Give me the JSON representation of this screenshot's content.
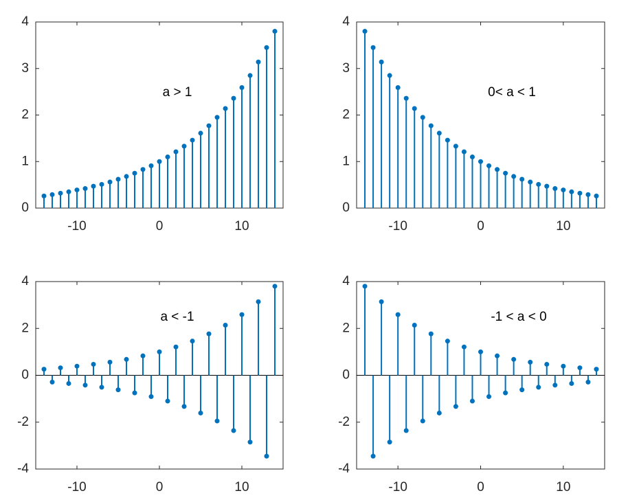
{
  "chart_data": [
    {
      "type": "stem",
      "annotation": "a > 1",
      "color": "#0072bd",
      "x": [
        -14,
        -13,
        -12,
        -11,
        -10,
        -9,
        -8,
        -7,
        -6,
        -5,
        -4,
        -3,
        -2,
        -1,
        0,
        1,
        2,
        3,
        4,
        5,
        6,
        7,
        8,
        9,
        10,
        11,
        12,
        13,
        14
      ],
      "values": [
        0.26,
        0.29,
        0.32,
        0.35,
        0.39,
        0.42,
        0.47,
        0.51,
        0.56,
        0.62,
        0.68,
        0.75,
        0.83,
        0.91,
        1,
        1.1,
        1.21,
        1.33,
        1.46,
        1.61,
        1.77,
        1.95,
        2.14,
        2.36,
        2.59,
        2.85,
        3.14,
        3.45,
        3.8
      ],
      "xlim": [
        -15,
        15
      ],
      "xticks": [
        -10,
        0,
        10
      ],
      "ylim": [
        0,
        4
      ],
      "yticks": [
        0,
        1,
        2,
        3,
        4
      ]
    },
    {
      "type": "stem",
      "annotation": "0< a < 1",
      "color": "#0072bd",
      "x": [
        -14,
        -13,
        -12,
        -11,
        -10,
        -9,
        -8,
        -7,
        -6,
        -5,
        -4,
        -3,
        -2,
        -1,
        0,
        1,
        2,
        3,
        4,
        5,
        6,
        7,
        8,
        9,
        10,
        11,
        12,
        13,
        14
      ],
      "values": [
        3.8,
        3.45,
        3.14,
        2.85,
        2.59,
        2.36,
        2.14,
        1.95,
        1.77,
        1.61,
        1.46,
        1.33,
        1.21,
        1.1,
        1,
        0.91,
        0.83,
        0.75,
        0.68,
        0.62,
        0.56,
        0.51,
        0.47,
        0.42,
        0.39,
        0.35,
        0.32,
        0.29,
        0.26
      ],
      "xlim": [
        -15,
        15
      ],
      "xticks": [
        -10,
        0,
        10
      ],
      "ylim": [
        0,
        4
      ],
      "yticks": [
        0,
        1,
        2,
        3,
        4
      ]
    },
    {
      "type": "stem",
      "annotation": "a < -1",
      "color": "#0072bd",
      "x": [
        -14,
        -13,
        -12,
        -11,
        -10,
        -9,
        -8,
        -7,
        -6,
        -5,
        -4,
        -3,
        -2,
        -1,
        0,
        1,
        2,
        3,
        4,
        5,
        6,
        7,
        8,
        9,
        10,
        11,
        12,
        13,
        14
      ],
      "values": [
        0.26,
        -0.29,
        0.32,
        -0.35,
        0.39,
        -0.42,
        0.47,
        -0.51,
        0.56,
        -0.62,
        0.68,
        -0.75,
        0.83,
        -0.91,
        1,
        -1.1,
        1.21,
        -1.33,
        1.46,
        -1.61,
        1.77,
        -1.95,
        2.14,
        -2.36,
        2.59,
        -2.85,
        3.14,
        -3.45,
        3.8
      ],
      "xlim": [
        -15,
        15
      ],
      "xticks": [
        -10,
        0,
        10
      ],
      "ylim": [
        -4,
        4
      ],
      "yticks": [
        -4,
        -2,
        0,
        2,
        4
      ]
    },
    {
      "type": "stem",
      "annotation": "-1 < a < 0",
      "color": "#0072bd",
      "x": [
        -14,
        -13,
        -12,
        -11,
        -10,
        -9,
        -8,
        -7,
        -6,
        -5,
        -4,
        -3,
        -2,
        -1,
        0,
        1,
        2,
        3,
        4,
        5,
        6,
        7,
        8,
        9,
        10,
        11,
        12,
        13,
        14
      ],
      "values": [
        3.8,
        -3.45,
        3.14,
        -2.85,
        2.59,
        -2.36,
        2.14,
        -1.95,
        1.77,
        -1.61,
        1.46,
        -1.33,
        1.21,
        -1.1,
        1,
        -0.91,
        0.83,
        -0.75,
        0.68,
        -0.62,
        0.56,
        -0.51,
        0.47,
        -0.42,
        0.39,
        -0.35,
        0.32,
        -0.29,
        0.26
      ],
      "xlim": [
        -15,
        15
      ],
      "xticks": [
        -10,
        0,
        10
      ],
      "ylim": [
        -4,
        4
      ],
      "yticks": [
        -4,
        -2,
        0,
        2,
        4
      ]
    }
  ]
}
